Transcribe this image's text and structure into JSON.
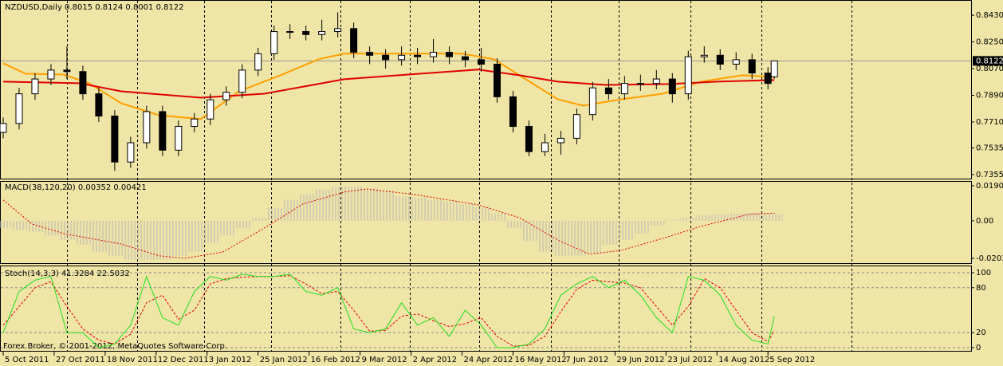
{
  "chart_data": [
    {
      "type": "candlestick",
      "title": "NZDUSD,Daily  0.8015 0.8124 0.8001 0.8122",
      "x": [
        0,
        5,
        10,
        15,
        20,
        25,
        30,
        35,
        40,
        45,
        50,
        55,
        60,
        65,
        70,
        75,
        80,
        85,
        90,
        95,
        100,
        105,
        110,
        115,
        120,
        125,
        130,
        135,
        140,
        145,
        150,
        155,
        160,
        165,
        170,
        175,
        180,
        185,
        190,
        195,
        200,
        205,
        210,
        215,
        220,
        225,
        230,
        235,
        240,
        242
      ],
      "open": [
        0.764,
        0.77,
        0.79,
        0.8,
        0.806,
        0.805,
        0.79,
        0.775,
        0.744,
        0.757,
        0.778,
        0.752,
        0.768,
        0.773,
        0.786,
        0.791,
        0.806,
        0.817,
        0.832,
        0.832,
        0.83,
        0.832,
        0.834,
        0.818,
        0.816,
        0.813,
        0.816,
        0.815,
        0.818,
        0.815,
        0.813,
        0.81,
        0.788,
        0.768,
        0.751,
        0.757,
        0.76,
        0.776,
        0.794,
        0.79,
        0.797,
        0.797,
        0.8,
        0.79,
        0.815,
        0.816,
        0.81,
        0.813,
        0.804,
        0.8015
      ],
      "high": [
        0.774,
        0.794,
        0.804,
        0.81,
        0.822,
        0.809,
        0.794,
        0.779,
        0.761,
        0.782,
        0.782,
        0.772,
        0.777,
        0.79,
        0.795,
        0.81,
        0.821,
        0.836,
        0.837,
        0.836,
        0.84,
        0.845,
        0.838,
        0.822,
        0.82,
        0.822,
        0.821,
        0.827,
        0.822,
        0.819,
        0.821,
        0.814,
        0.792,
        0.772,
        0.763,
        0.765,
        0.78,
        0.798,
        0.8,
        0.802,
        0.803,
        0.806,
        0.804,
        0.819,
        0.822,
        0.82,
        0.818,
        0.817,
        0.808,
        0.8124
      ],
      "low": [
        0.76,
        0.766,
        0.786,
        0.796,
        0.8,
        0.786,
        0.771,
        0.738,
        0.74,
        0.753,
        0.748,
        0.748,
        0.764,
        0.769,
        0.782,
        0.787,
        0.802,
        0.813,
        0.827,
        0.826,
        0.826,
        0.828,
        0.814,
        0.81,
        0.807,
        0.809,
        0.81,
        0.811,
        0.81,
        0.808,
        0.805,
        0.784,
        0.764,
        0.748,
        0.748,
        0.749,
        0.756,
        0.772,
        0.786,
        0.786,
        0.792,
        0.793,
        0.784,
        0.786,
        0.811,
        0.806,
        0.806,
        0.8,
        0.793,
        0.8001
      ],
      "close": [
        0.77,
        0.79,
        0.8,
        0.806,
        0.805,
        0.79,
        0.775,
        0.744,
        0.757,
        0.778,
        0.752,
        0.768,
        0.773,
        0.786,
        0.791,
        0.806,
        0.817,
        0.832,
        0.832,
        0.83,
        0.832,
        0.834,
        0.818,
        0.816,
        0.813,
        0.816,
        0.815,
        0.818,
        0.815,
        0.813,
        0.81,
        0.788,
        0.768,
        0.751,
        0.757,
        0.76,
        0.776,
        0.794,
        0.79,
        0.797,
        0.797,
        0.8,
        0.79,
        0.815,
        0.816,
        0.81,
        0.813,
        0.804,
        0.797,
        0.8122
      ],
      "up_color": "#ffffff",
      "down_color": "#000000",
      "series": [
        {
          "color": "#ffa000",
          "x": [
            0,
            7,
            19,
            27,
            37,
            49,
            62,
            74,
            87,
            99,
            107,
            124,
            144,
            154,
            164,
            174,
            182,
            194,
            207,
            219,
            232,
            242
          ],
          "values": [
            0.8106,
            0.8036,
            0.803,
            0.7971,
            0.7836,
            0.7755,
            0.773,
            0.7917,
            0.8025,
            0.8133,
            0.8171,
            0.8171,
            0.8171,
            0.8133,
            0.7998,
            0.7863,
            0.782,
            0.7863,
            0.7901,
            0.7982,
            0.8025,
            0.8014
          ]
        },
        {
          "color": "#e00000",
          "x": [
            0,
            24,
            37,
            62,
            82,
            107,
            124,
            149,
            162,
            174,
            189,
            209,
            224,
            242
          ],
          "values": [
            0.7982,
            0.7971,
            0.7917,
            0.7874,
            0.7901,
            0.7998,
            0.8025,
            0.8063,
            0.8025,
            0.7982,
            0.796,
            0.7966,
            0.7982,
            0.7993
          ]
        }
      ],
      "xlim": [
        -0.75,
        303.75
      ],
      "ylim": [
        0.7328,
        0.8522
      ],
      "yticks": [
        {
          "value": 0.843,
          "label": "0.8430"
        },
        {
          "value": 0.825,
          "label": "0.8250"
        },
        {
          "value": 0.807,
          "label": "0.8070"
        },
        {
          "value": 0.789,
          "label": "0.7890"
        },
        {
          "value": 0.771,
          "label": "0.7710"
        },
        0.7535,
        0.7355
      ]
    },
    {
      "type": "macd",
      "title": "MACD(38,120,20) 0.00352 0.00421",
      "x": [
        0,
        5,
        10,
        15,
        20,
        25,
        30,
        35,
        40,
        45,
        50,
        55,
        60,
        65,
        70,
        75,
        80,
        85,
        90,
        95,
        100,
        105,
        110,
        115,
        120,
        125,
        130,
        135,
        140,
        145,
        150,
        155,
        160,
        165,
        170,
        175,
        180,
        185,
        190,
        195,
        200,
        205,
        210,
        215,
        220,
        225,
        230,
        235,
        240,
        242
      ],
      "histogram": [
        -0.0039,
        -0.005,
        -0.006,
        -0.008,
        -0.0104,
        -0.013,
        -0.0169,
        -0.019,
        -0.0212,
        -0.0212,
        -0.021,
        -0.019,
        -0.0169,
        -0.012,
        -0.008,
        -0.004,
        0.0015,
        0.007,
        0.0113,
        0.0145,
        0.0169,
        0.0186,
        0.0186,
        0.0175,
        0.0165,
        0.0134,
        0.0125,
        0.0115,
        0.0105,
        0.009,
        0.0075,
        0.004,
        -0.004,
        -0.011,
        -0.0169,
        -0.019,
        -0.019,
        -0.0175,
        -0.013,
        -0.0104,
        -0.007,
        -0.0026,
        0.0005,
        0.0017,
        0.003,
        0.0035,
        0.004,
        0.0043,
        0.004,
        0.00352
      ],
      "histogram_color": "#b8b8b8",
      "signal": {
        "color": "#e00000",
        "x": [
          0,
          9,
          19,
          37,
          49,
          57,
          69,
          82,
          94,
          107,
          114,
          129,
          149,
          162,
          174,
          184,
          194,
          207,
          219,
          234,
          242
        ],
        "values": [
          0.0113,
          -0.0017,
          -0.0069,
          -0.0126,
          -0.019,
          -0.0204,
          -0.0169,
          -0.0039,
          0.0091,
          0.0156,
          0.0173,
          0.0143,
          0.0087,
          0.0017,
          -0.0104,
          -0.0182,
          -0.016,
          -0.0095,
          -0.003,
          0.0035,
          0.00421
        ]
      },
      "xlim": [
        -0.75,
        303.75
      ],
      "ylim": [
        -0.02299,
        0.02119
      ],
      "yticks": [
        0.01902,
        {
          "value": 0,
          "label": "0.00"
        },
        -0.02039
      ]
    },
    {
      "type": "stochastic",
      "title": "Stoch(14,3,3) 41.3284 22.5032",
      "x": [
        0,
        5,
        10,
        15,
        20,
        25,
        30,
        35,
        40,
        45,
        50,
        55,
        60,
        65,
        70,
        75,
        80,
        85,
        90,
        95,
        100,
        105,
        110,
        115,
        120,
        125,
        130,
        135,
        140,
        145,
        150,
        155,
        160,
        165,
        170,
        175,
        180,
        185,
        190,
        195,
        200,
        205,
        210,
        215,
        220,
        225,
        230,
        235,
        240,
        242
      ],
      "main": {
        "color": "#22dd22",
        "values": [
          20,
          75,
          90,
          95,
          20,
          20,
          0,
          5,
          30,
          95,
          40,
          30,
          75,
          95,
          90,
          98,
          95,
          95,
          98,
          75,
          70,
          80,
          25,
          20,
          25,
          60,
          30,
          40,
          15,
          50,
          30,
          0,
          0,
          5,
          25,
          70,
          85,
          95,
          80,
          90,
          70,
          40,
          20,
          95,
          90,
          70,
          30,
          10,
          5,
          41.3284
        ]
      },
      "signal": {
        "color": "#e00000",
        "values": [
          30,
          55,
          80,
          88,
          55,
          25,
          10,
          5,
          18,
          60,
          70,
          38,
          50,
          85,
          92,
          94,
          95,
          95,
          96,
          85,
          72,
          75,
          50,
          22,
          23,
          42,
          45,
          36,
          28,
          32,
          40,
          15,
          2,
          3,
          15,
          48,
          78,
          90,
          88,
          86,
          80,
          55,
          30,
          55,
          92,
          80,
          50,
          20,
          8,
          22.5032
        ]
      },
      "xlim": [
        -0.75,
        303.75
      ],
      "ylim": [
        -4.3,
        108.5
      ],
      "yticks": [
        100,
        80,
        20,
        0
      ],
      "grid": true,
      "xticks": [
        {
          "value": 0,
          "label": "5 Oct 2011"
        },
        {
          "value": 16,
          "label": "27 Oct 2011"
        },
        {
          "value": 32,
          "label": "18 Nov 2011"
        },
        {
          "value": 48,
          "label": "12 Dec 2011"
        },
        {
          "value": 64,
          "label": "3 Jan 2012"
        },
        {
          "value": 80,
          "label": "25 Jan 2012"
        },
        {
          "value": 96,
          "label": "16 Feb 2012"
        },
        {
          "value": 112,
          "label": "9 Mar 2012"
        },
        {
          "value": 128,
          "label": "2 Apr 2012"
        },
        {
          "value": 144,
          "label": "24 Apr 2012"
        },
        {
          "value": 160,
          "label": "16 May 2012"
        },
        {
          "value": 176,
          "label": "7 Jun 2012"
        },
        {
          "value": 192,
          "label": "29 Jun 2012"
        },
        {
          "value": 208,
          "label": "23 Jul 2012"
        },
        {
          "value": 224,
          "label": "14 Aug 2012"
        },
        {
          "value": 240,
          "label": "5 Sep 2012"
        }
      ],
      "annotation": "Forex Broker, © 2001-2012, MetaQuotes Software Corp."
    }
  ]
}
